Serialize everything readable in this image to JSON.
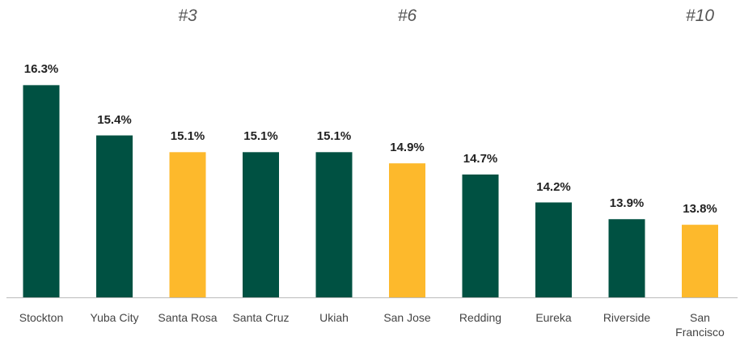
{
  "chart_data": {
    "type": "bar",
    "categories": [
      "Stockton",
      "Yuba City",
      "Santa Rosa",
      "Santa Cruz",
      "Ukiah",
      "San Jose",
      "Redding",
      "Eureka",
      "Riverside",
      "San Francisco"
    ],
    "values": [
      16.3,
      15.4,
      15.1,
      15.1,
      15.1,
      14.9,
      14.7,
      14.2,
      13.9,
      13.8
    ],
    "value_labels": [
      "16.3%",
      "15.4%",
      "15.1%",
      "15.1%",
      "15.1%",
      "14.9%",
      "14.7%",
      "14.2%",
      "13.9%",
      "13.8%"
    ],
    "colors": [
      "#005142",
      "#005142",
      "#fdb92c",
      "#005142",
      "#005142",
      "#fdb92c",
      "#005142",
      "#005142",
      "#005142",
      "#fdb92c"
    ],
    "annotations": [
      {
        "text": "#3",
        "category": "Santa Rosa"
      },
      {
        "text": "#6",
        "category": "San Jose"
      },
      {
        "text": "#10",
        "category": "San Francisco"
      }
    ],
    "ylim": [
      12.5,
      17
    ]
  }
}
